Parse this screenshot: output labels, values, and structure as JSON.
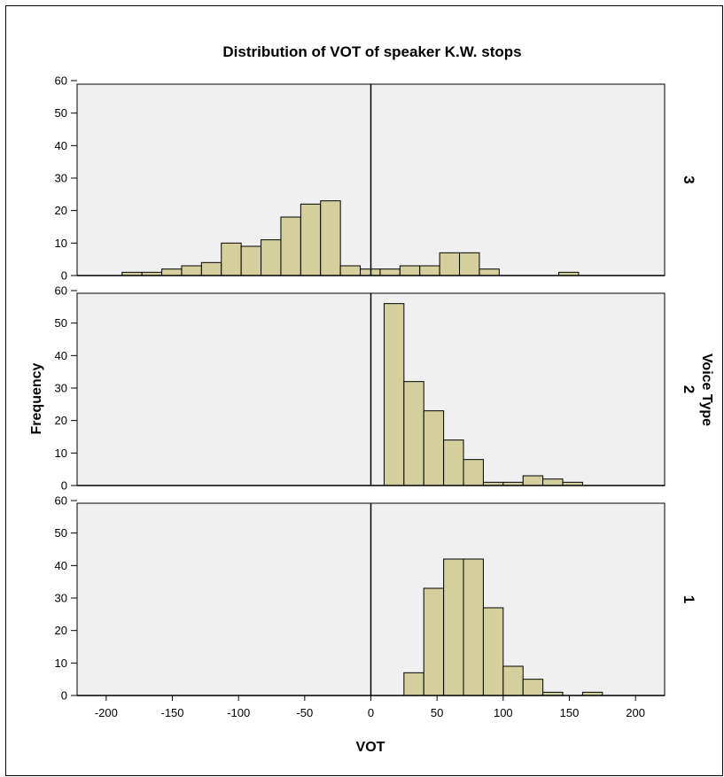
{
  "chart_data": {
    "type": "bar",
    "title": "Distribution of VOT of speaker K.W. stops",
    "xlabel": "VOT",
    "ylabel": "Frequency",
    "panel_axis_label": "Voice Type",
    "xlim": [
      -222,
      222
    ],
    "ylim": [
      0,
      63
    ],
    "x_ticks": [
      -200,
      -150,
      -100,
      -50,
      0,
      50,
      100,
      150,
      200
    ],
    "y_ticks": [
      0,
      10,
      20,
      30,
      40,
      50,
      60
    ],
    "bin_width": 15,
    "reference_line_x": 0,
    "colors": {
      "bar_fill": "#d4cf9c",
      "bar_stroke": "#000000",
      "panel_bg": "#f0f0f0"
    },
    "panels": [
      {
        "label": "3",
        "bins": [
          {
            "x0": -188,
            "x1": -173,
            "count": 1
          },
          {
            "x0": -173,
            "x1": -158,
            "count": 1
          },
          {
            "x0": -158,
            "x1": -143,
            "count": 2
          },
          {
            "x0": -143,
            "x1": -128,
            "count": 3
          },
          {
            "x0": -128,
            "x1": -113,
            "count": 4
          },
          {
            "x0": -113,
            "x1": -98,
            "count": 10
          },
          {
            "x0": -98,
            "x1": -83,
            "count": 9
          },
          {
            "x0": -83,
            "x1": -68,
            "count": 11
          },
          {
            "x0": -68,
            "x1": -53,
            "count": 18
          },
          {
            "x0": -53,
            "x1": -38,
            "count": 22
          },
          {
            "x0": -38,
            "x1": -23,
            "count": 23
          },
          {
            "x0": -23,
            "x1": -8,
            "count": 3
          },
          {
            "x0": -8,
            "x1": 7,
            "count": 2
          },
          {
            "x0": 7,
            "x1": 22,
            "count": 2
          },
          {
            "x0": 22,
            "x1": 37,
            "count": 3
          },
          {
            "x0": 37,
            "x1": 52,
            "count": 3
          },
          {
            "x0": 52,
            "x1": 67,
            "count": 7
          },
          {
            "x0": 67,
            "x1": 82,
            "count": 7
          },
          {
            "x0": 82,
            "x1": 97,
            "count": 2
          },
          {
            "x0": 142,
            "x1": 157,
            "count": 1
          }
        ]
      },
      {
        "label": "2",
        "bins": [
          {
            "x0": 10,
            "x1": 25,
            "count": 56
          },
          {
            "x0": 25,
            "x1": 40,
            "count": 32
          },
          {
            "x0": 40,
            "x1": 55,
            "count": 23
          },
          {
            "x0": 55,
            "x1": 70,
            "count": 14
          },
          {
            "x0": 70,
            "x1": 85,
            "count": 8
          },
          {
            "x0": 85,
            "x1": 100,
            "count": 1
          },
          {
            "x0": 100,
            "x1": 115,
            "count": 1
          },
          {
            "x0": 115,
            "x1": 130,
            "count": 3
          },
          {
            "x0": 130,
            "x1": 145,
            "count": 2
          },
          {
            "x0": 145,
            "x1": 160,
            "count": 1
          }
        ]
      },
      {
        "label": "1",
        "bins": [
          {
            "x0": 25,
            "x1": 40,
            "count": 7
          },
          {
            "x0": 40,
            "x1": 55,
            "count": 33
          },
          {
            "x0": 55,
            "x1": 70,
            "count": 42
          },
          {
            "x0": 70,
            "x1": 85,
            "count": 42
          },
          {
            "x0": 85,
            "x1": 100,
            "count": 27
          },
          {
            "x0": 100,
            "x1": 115,
            "count": 9
          },
          {
            "x0": 115,
            "x1": 130,
            "count": 5
          },
          {
            "x0": 130,
            "x1": 145,
            "count": 1
          },
          {
            "x0": 160,
            "x1": 175,
            "count": 1
          }
        ]
      }
    ]
  }
}
